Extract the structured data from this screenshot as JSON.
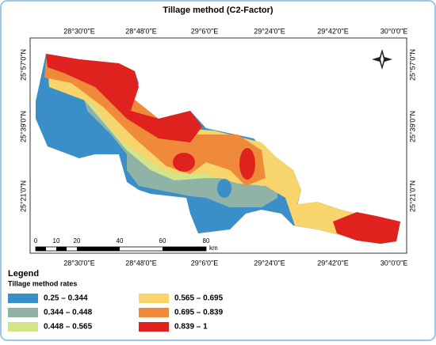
{
  "title": "Tillage method (C2-Factor)",
  "top_labels": [
    "28°30'0\"E",
    "28°48'0\"E",
    "29°6'0\"E",
    "29°24'0\"E",
    "29°42'0\"E",
    "30°0'0\"E"
  ],
  "bottom_labels": [
    "28°30'0\"E",
    "28°48'0\"E",
    "29°6'0\"E",
    "29°24'0\"E",
    "29°42'0\"E",
    "30°0'0\"E"
  ],
  "left_labels": [
    "25°57'0\"N",
    "25°39'0\"N",
    "25°21'0\"N"
  ],
  "right_labels": [
    "25°57'0\"N",
    "25°39'0\"N",
    "25°21'0\"N"
  ],
  "scale_labels": [
    "0",
    "10",
    "20",
    "40",
    "60",
    "80"
  ],
  "scale_unit": "km",
  "legend": {
    "title": "Legend",
    "subtitle": "Tillage method rates",
    "items": [
      {
        "label": "0.25 – 0.344",
        "color": "#3a8fc9"
      },
      {
        "label": "0.344 – 0.448",
        "color": "#8fb3a6"
      },
      {
        "label": "0.448 – 0.565",
        "color": "#d3e48a"
      },
      {
        "label": "0.565 – 0.695",
        "color": "#f7d46c"
      },
      {
        "label": "0.695 – 0.839",
        "color": "#ef8a3b"
      },
      {
        "label": "0.839 – 1",
        "color": "#e0221f"
      }
    ]
  }
}
